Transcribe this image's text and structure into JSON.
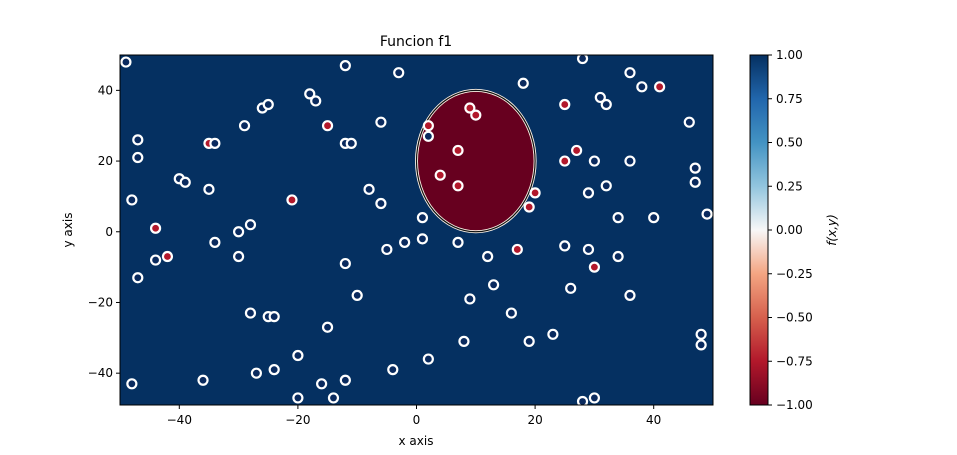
{
  "chart_data": {
    "type": "scatter",
    "title": "Funcion f1",
    "xlabel": "x axis",
    "ylabel": "y axis",
    "xlim": [
      -50,
      50
    ],
    "ylim": [
      -49,
      50
    ],
    "x_ticks": [
      -40,
      -20,
      0,
      20,
      40
    ],
    "y_ticks": [
      -40,
      -20,
      0,
      20,
      40
    ],
    "background_value": 1.0,
    "region": {
      "shape": "ellipse",
      "center": [
        10,
        20
      ],
      "radii": [
        10,
        20
      ],
      "inside_value": -1.0
    },
    "colormap": "RdBu",
    "colorbar": {
      "label": "f(x,y)",
      "range": [
        -1.0,
        1.0
      ],
      "ticks": [
        "1.00",
        "0.75",
        "0.50",
        "0.25",
        "0.00",
        "-0.25",
        "-0.50",
        "-0.75",
        "-1.00"
      ],
      "tick_values": [
        1.0,
        0.75,
        0.5,
        0.25,
        0.0,
        -0.25,
        -0.5,
        -0.75,
        -1.0
      ]
    },
    "colors": {
      "blue": "#053061",
      "red": "#67001f",
      "marker_edge": "#ffffff",
      "marker_blue": "#0a2a5e",
      "marker_red": "#b2182b"
    },
    "points": [
      {
        "x": -49,
        "y": 48,
        "class": 1
      },
      {
        "x": -48,
        "y": 9,
        "class": 1
      },
      {
        "x": -48,
        "y": -43,
        "class": 1
      },
      {
        "x": -47,
        "y": 26,
        "class": 1
      },
      {
        "x": -47,
        "y": 21,
        "class": 1
      },
      {
        "x": -47,
        "y": -13,
        "class": 1
      },
      {
        "x": -44,
        "y": 1,
        "class": -1
      },
      {
        "x": -44,
        "y": -8,
        "class": 1
      },
      {
        "x": -42,
        "y": -7,
        "class": -1
      },
      {
        "x": -40,
        "y": 15,
        "class": 1
      },
      {
        "x": -39,
        "y": 14,
        "class": 1
      },
      {
        "x": -35,
        "y": 25,
        "class": -1
      },
      {
        "x": -36,
        "y": -42,
        "class": 1
      },
      {
        "x": -35,
        "y": 12,
        "class": 1
      },
      {
        "x": -34,
        "y": 25,
        "class": 1
      },
      {
        "x": -34,
        "y": -3,
        "class": 1
      },
      {
        "x": -30,
        "y": 0,
        "class": 1
      },
      {
        "x": -30,
        "y": -7,
        "class": 1
      },
      {
        "x": -29,
        "y": 30,
        "class": 1
      },
      {
        "x": -28,
        "y": 2,
        "class": 1
      },
      {
        "x": -28,
        "y": -23,
        "class": 1
      },
      {
        "x": -26,
        "y": 35,
        "class": 1
      },
      {
        "x": -25,
        "y": 36,
        "class": 1
      },
      {
        "x": -25,
        "y": -24,
        "class": 1
      },
      {
        "x": -24,
        "y": -24,
        "class": 1
      },
      {
        "x": -27,
        "y": -40,
        "class": 1
      },
      {
        "x": -24,
        "y": -39,
        "class": 1
      },
      {
        "x": -21,
        "y": 9,
        "class": -1
      },
      {
        "x": -20,
        "y": -35,
        "class": 1
      },
      {
        "x": -20,
        "y": -47,
        "class": 1
      },
      {
        "x": -18,
        "y": 39,
        "class": 1
      },
      {
        "x": -17,
        "y": 37,
        "class": 1
      },
      {
        "x": -15,
        "y": 30,
        "class": -1
      },
      {
        "x": -15,
        "y": -27,
        "class": 1
      },
      {
        "x": -16,
        "y": -43,
        "class": 1
      },
      {
        "x": -14,
        "y": -47,
        "class": 1
      },
      {
        "x": -12,
        "y": 47,
        "class": 1
      },
      {
        "x": -12,
        "y": 25,
        "class": 1
      },
      {
        "x": -11,
        "y": 25,
        "class": 1
      },
      {
        "x": -12,
        "y": -9,
        "class": 1
      },
      {
        "x": -12,
        "y": -42,
        "class": 1
      },
      {
        "x": -10,
        "y": -18,
        "class": 1
      },
      {
        "x": -8,
        "y": 12,
        "class": 1
      },
      {
        "x": -6,
        "y": 31,
        "class": 1
      },
      {
        "x": -6,
        "y": 8,
        "class": 1
      },
      {
        "x": -5,
        "y": -5,
        "class": 1
      },
      {
        "x": -4,
        "y": -39,
        "class": 1
      },
      {
        "x": -3,
        "y": 45,
        "class": 1
      },
      {
        "x": -2,
        "y": -3,
        "class": 1
      },
      {
        "x": 1,
        "y": 4,
        "class": 1
      },
      {
        "x": 1,
        "y": -2,
        "class": 1
      },
      {
        "x": 2,
        "y": 27,
        "class": 1
      },
      {
        "x": 2,
        "y": 30,
        "class": -1
      },
      {
        "x": 2,
        "y": -36,
        "class": 1
      },
      {
        "x": 4,
        "y": 16,
        "class": -1
      },
      {
        "x": 7,
        "y": 23,
        "class": -1
      },
      {
        "x": 7,
        "y": 13,
        "class": -1
      },
      {
        "x": 7,
        "y": -3,
        "class": 1
      },
      {
        "x": 8,
        "y": -31,
        "class": 1
      },
      {
        "x": 9,
        "y": 35,
        "class": -1
      },
      {
        "x": 9,
        "y": -19,
        "class": 1
      },
      {
        "x": 10,
        "y": 33,
        "class": -1
      },
      {
        "x": 12,
        "y": -7,
        "class": 1
      },
      {
        "x": 13,
        "y": -15,
        "class": 1
      },
      {
        "x": 16,
        "y": -23,
        "class": 1
      },
      {
        "x": 17,
        "y": -5,
        "class": -1
      },
      {
        "x": 18,
        "y": 42,
        "class": 1
      },
      {
        "x": 19,
        "y": 7,
        "class": -1
      },
      {
        "x": 19,
        "y": -31,
        "class": 1
      },
      {
        "x": 20,
        "y": 11,
        "class": -1
      },
      {
        "x": 23,
        "y": -29,
        "class": 1
      },
      {
        "x": 25,
        "y": 36,
        "class": -1
      },
      {
        "x": 25,
        "y": -4,
        "class": 1
      },
      {
        "x": 25,
        "y": 20,
        "class": -1
      },
      {
        "x": 27,
        "y": 23,
        "class": -1
      },
      {
        "x": 26,
        "y": -16,
        "class": 1
      },
      {
        "x": 28,
        "y": 49,
        "class": 1
      },
      {
        "x": 28,
        "y": -48,
        "class": 1
      },
      {
        "x": 29,
        "y": 11,
        "class": 1
      },
      {
        "x": 30,
        "y": 20,
        "class": 1
      },
      {
        "x": 29,
        "y": -5,
        "class": 1
      },
      {
        "x": 30,
        "y": -10,
        "class": -1
      },
      {
        "x": 30,
        "y": -47,
        "class": 1
      },
      {
        "x": 31,
        "y": 38,
        "class": 1
      },
      {
        "x": 32,
        "y": 36,
        "class": 1
      },
      {
        "x": 32,
        "y": 13,
        "class": 1
      },
      {
        "x": 34,
        "y": 4,
        "class": 1
      },
      {
        "x": 34,
        "y": -7,
        "class": 1
      },
      {
        "x": 36,
        "y": 45,
        "class": 1
      },
      {
        "x": 36,
        "y": 20,
        "class": 1
      },
      {
        "x": 36,
        "y": -18,
        "class": 1
      },
      {
        "x": 38,
        "y": 41,
        "class": 1
      },
      {
        "x": 40,
        "y": 4,
        "class": 1
      },
      {
        "x": 41,
        "y": 41,
        "class": -1
      },
      {
        "x": 46,
        "y": 31,
        "class": 1
      },
      {
        "x": 47,
        "y": 18,
        "class": 1
      },
      {
        "x": 47,
        "y": 14,
        "class": 1
      },
      {
        "x": 49,
        "y": 5,
        "class": 1
      },
      {
        "x": 48,
        "y": -29,
        "class": 1
      },
      {
        "x": 48,
        "y": -32,
        "class": 1
      }
    ]
  }
}
